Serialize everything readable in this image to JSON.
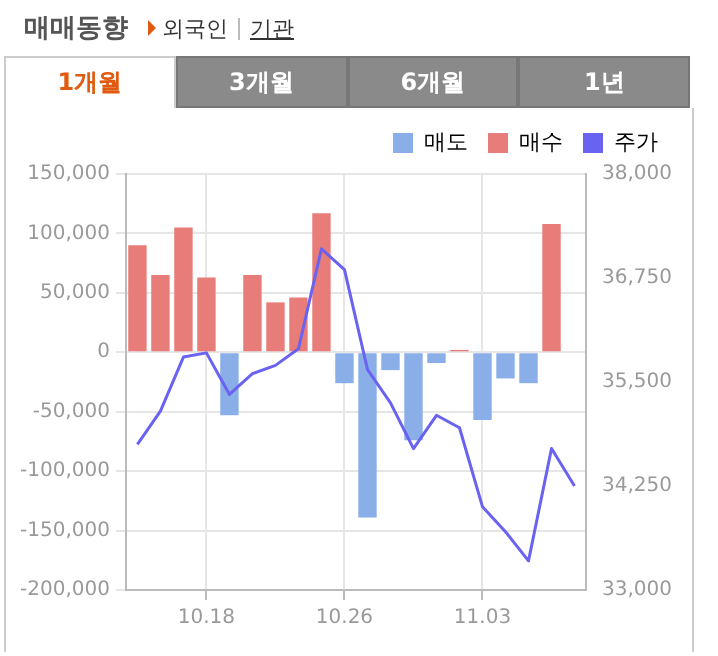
{
  "chart_data": {
    "type": "bar",
    "title": "매매동향",
    "annotations": [
      "외국인",
      "기관",
      "1개월",
      "3개월",
      "6개월",
      "1년"
    ],
    "categories": [
      null,
      null,
      null,
      "10.18",
      null,
      null,
      null,
      null,
      null,
      "10.26",
      null,
      null,
      null,
      null,
      null,
      "11.03",
      null,
      null,
      null,
      null
    ],
    "stacked": true,
    "series": [
      {
        "name": "매도",
        "color": "#8aaee8",
        "values": [
          null,
          null,
          null,
          null,
          -53000,
          null,
          null,
          null,
          null,
          -26000,
          -139000,
          -15000,
          -74000,
          -9000,
          null,
          -57000,
          -22000,
          -26000,
          null,
          null
        ]
      },
      {
        "name": "매수",
        "color": "#e87c78",
        "values": [
          90000,
          65000,
          105000,
          63000,
          null,
          65000,
          42000,
          46000,
          117000,
          null,
          null,
          null,
          null,
          null,
          2000,
          null,
          null,
          null,
          108000,
          null
        ]
      },
      {
        "name": "주가",
        "type": "line",
        "axis": "y2",
        "color": "#6a62f0",
        "values": [
          34750,
          35150,
          35800,
          35850,
          35350,
          35600,
          35700,
          35900,
          37100,
          36850,
          35650,
          35250,
          34700,
          35100,
          34950,
          34000,
          33700,
          33350,
          34700,
          34250
        ]
      }
    ],
    "ylim": [
      -200000,
      150000
    ],
    "yticks": [
      {
        "value": -200000,
        "label": "-200,000"
      },
      {
        "value": -150000,
        "label": "-150,000"
      },
      {
        "value": -100000,
        "label": "-100,000"
      },
      {
        "value": -50000,
        "label": "-50,000"
      },
      0,
      {
        "value": 50000,
        "label": "50,000"
      },
      {
        "value": 100000,
        "label": "100,000"
      },
      {
        "value": 150000,
        "label": "150,000"
      }
    ],
    "y2lim": [
      33000,
      38000
    ],
    "y2ticks": [
      {
        "value": 33000,
        "label": "33,000"
      },
      {
        "value": 34250,
        "label": "34,250"
      },
      {
        "value": 35500,
        "label": "35,500"
      },
      {
        "value": 36750,
        "label": "36,750"
      },
      {
        "value": 38000,
        "label": "38,000"
      }
    ],
    "grid": true,
    "legend": "top right"
  }
}
